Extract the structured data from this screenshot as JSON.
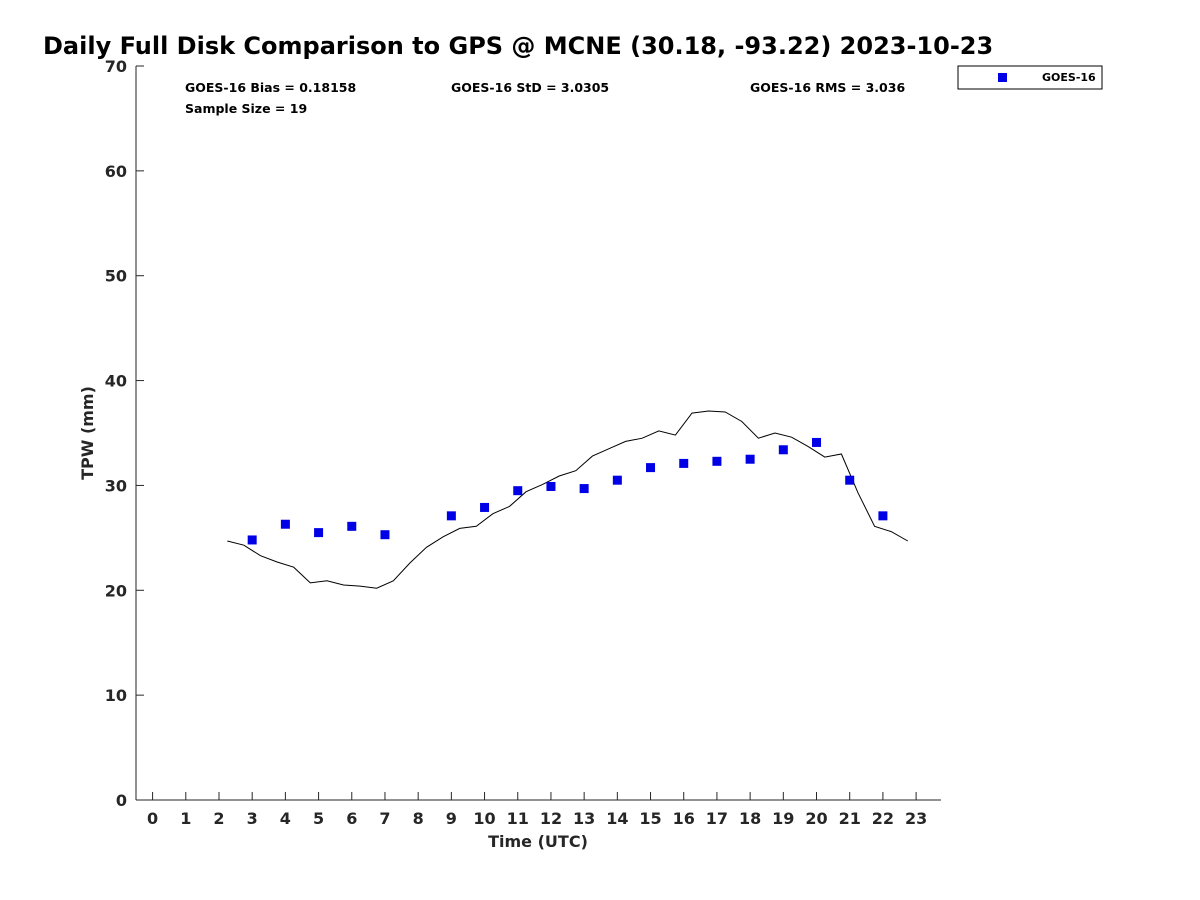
{
  "title": "Daily Full Disk Comparison to GPS @ MCNE (30.18, -93.22) 2023-10-23",
  "stats": {
    "bias": "GOES-16 Bias = 0.18158",
    "std": "GOES-16 StD = 3.0305",
    "rms": "GOES-16 RMS = 3.036",
    "sample_size": "Sample Size = 19"
  },
  "legend": {
    "label": "GOES-16"
  },
  "colors": {
    "goes": "#0000e6",
    "gps_line": "#000000",
    "axis": "#262626"
  },
  "chart_data": {
    "type": "scatter",
    "title": "Daily Full Disk Comparison to GPS @ MCNE (30.18, -93.22) 2023-10-23",
    "xlabel": "Time (UTC)",
    "ylabel": "TPW (mm)",
    "xlim": [
      -0.5,
      23.75
    ],
    "ylim": [
      0,
      70
    ],
    "xticks": [
      0,
      1,
      2,
      3,
      4,
      5,
      6,
      7,
      8,
      9,
      10,
      11,
      12,
      13,
      14,
      15,
      16,
      17,
      18,
      19,
      20,
      21,
      22,
      23
    ],
    "yticks": [
      0,
      10,
      20,
      30,
      40,
      50,
      60,
      70
    ],
    "grid": false,
    "legend_position": "top-right (outside plot)",
    "series": [
      {
        "name": "GOES-16",
        "type": "scatter",
        "marker": "square",
        "x": [
          3,
          4,
          5,
          6,
          7,
          9,
          10,
          11,
          12,
          13,
          14,
          15,
          16,
          17,
          18,
          19,
          20,
          21,
          22
        ],
        "y": [
          24.8,
          26.3,
          25.5,
          26.1,
          25.3,
          27.1,
          27.9,
          29.5,
          29.9,
          29.7,
          30.5,
          31.7,
          32.1,
          32.3,
          32.5,
          33.4,
          34.1,
          30.5,
          27.1
        ]
      },
      {
        "type": "line",
        "x": [
          2.25,
          2.75,
          3.25,
          3.75,
          4.25,
          4.75,
          5.25,
          5.75,
          6.25,
          6.75,
          7.25,
          7.75,
          8.25,
          8.75,
          9.25,
          9.75,
          10.25,
          10.75,
          11.25,
          11.75,
          12.25,
          12.75,
          13.25,
          13.75,
          14.25,
          14.75,
          15.25,
          15.75,
          16.25,
          16.75,
          17.25,
          17.75,
          18.25,
          18.75,
          19.25,
          19.75,
          20.25,
          20.75,
          21.25,
          21.75,
          22.25,
          22.75
        ],
        "y": [
          24.7,
          24.3,
          23.3,
          22.7,
          22.2,
          20.7,
          20.9,
          20.5,
          20.4,
          20.2,
          20.9,
          22.6,
          24.1,
          25.1,
          25.9,
          26.1,
          27.3,
          28.0,
          29.4,
          30.1,
          30.9,
          31.4,
          32.8,
          33.5,
          34.2,
          34.5,
          35.2,
          34.8,
          36.9,
          37.1,
          37.0,
          36.1,
          34.5,
          35.0,
          34.6,
          33.7,
          32.7,
          33.0,
          29.3,
          26.1,
          25.6,
          24.7
        ]
      }
    ]
  }
}
